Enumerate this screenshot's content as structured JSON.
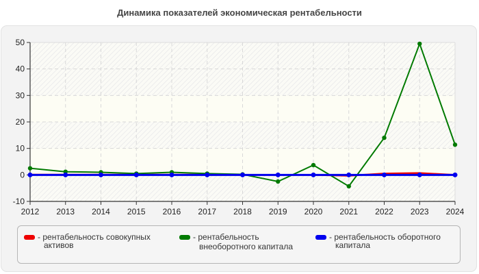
{
  "title": "Динамика показателей экономическая рентабельности",
  "legend": [
    {
      "dash": "-",
      "label_line1": "рентабельность совокупных",
      "label_line2": "активов",
      "color": "#ee0000"
    },
    {
      "dash": "-",
      "label_line1": "рентабельность",
      "label_line2": "внеоборотного капитала",
      "color": "#007a00"
    },
    {
      "dash": "-",
      "label_line1": "рентабельность оборотного",
      "label_line2": "капитала",
      "color": "#0000ee"
    }
  ],
  "chart_data": {
    "type": "line",
    "title": "Динамика показателей экономическая рентабельности",
    "xlabel": "",
    "ylabel": "",
    "x": [
      2012,
      2013,
      2014,
      2015,
      2016,
      2017,
      2018,
      2019,
      2020,
      2021,
      2022,
      2023,
      2024
    ],
    "y_ticks": [
      -10,
      0,
      10,
      20,
      30,
      40,
      50
    ],
    "ylim": [
      -10,
      50
    ],
    "grid": true,
    "legend_position": "bottom",
    "series": [
      {
        "name": "рентабельность совокупных активов",
        "color": "#ee0000",
        "values": [
          0.1,
          0.1,
          0.1,
          0.1,
          0.1,
          0.1,
          0.0,
          0.0,
          0.0,
          -0.3,
          0.5,
          0.7,
          0.0
        ]
      },
      {
        "name": "рентабельность внеоборотного капитала",
        "color": "#007a00",
        "values": [
          2.5,
          1.2,
          1.0,
          0.5,
          1.0,
          0.5,
          0.2,
          -2.5,
          3.7,
          -4.3,
          14.0,
          49.5,
          11.4
        ]
      },
      {
        "name": "рентабельность оборотного капитала",
        "color": "#0000ee",
        "values": [
          0.0,
          0.0,
          0.0,
          0.0,
          0.0,
          0.0,
          0.0,
          0.0,
          0.0,
          0.0,
          0.0,
          0.0,
          0.0
        ]
      }
    ]
  }
}
